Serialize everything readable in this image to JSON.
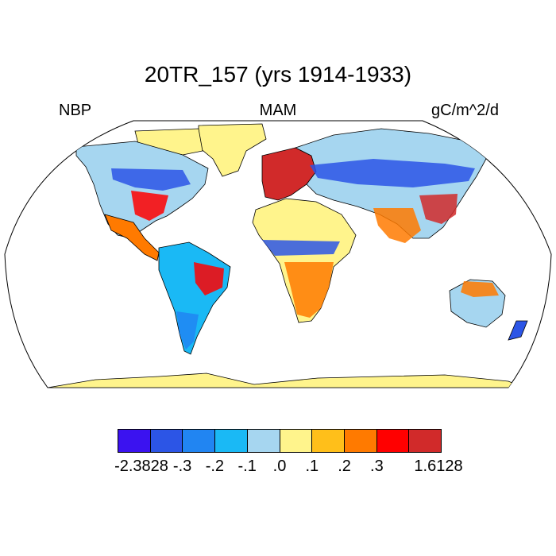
{
  "title": "20TR_157 (yrs 1914-1933)",
  "left_label": "NBP",
  "center_label": "MAM",
  "right_label": "gC/m^2/d",
  "colorbar": {
    "colors": [
      "#3b12f0",
      "#2c55e6",
      "#2185f2",
      "#1ab9f5",
      "#a6d6f0",
      "#fff48c",
      "#ffbf1a",
      "#ff7a00",
      "#ff0000",
      "#d12a2a"
    ],
    "labels": [
      "-2.3828",
      "-.3",
      "-.2",
      "-.1",
      ".0",
      ".1",
      ".2",
      ".3",
      "1.6128"
    ]
  },
  "map": {
    "projection": "Robinson",
    "land_default_color": "#fff48c",
    "ocean_color": "#ffffff",
    "region_colors": [
      {
        "region": "Arctic Canada & Greenland",
        "color": "#fff48c"
      },
      {
        "region": "Alaska & Western Canada",
        "color": "#a6d6f0"
      },
      {
        "region": "Central Canada band",
        "color": "#2c55e6"
      },
      {
        "region": "Eastern United States",
        "color": "#ff0000"
      },
      {
        "region": "Central America & Mexico",
        "color": "#ff7a00"
      },
      {
        "region": "Amazon basin",
        "color": "#1ab9f5"
      },
      {
        "region": "Eastern Brazil",
        "color": "#ff0000"
      },
      {
        "region": "Southern South America",
        "color": "#2185f2"
      },
      {
        "region": "Western Europe",
        "color": "#d12a2a"
      },
      {
        "region": "Siberia & boreal Eurasia",
        "color": "#a6d6f0"
      },
      {
        "region": "Central Asia band",
        "color": "#2c55e6"
      },
      {
        "region": "Sahara & Middle East",
        "color": "#fff48c"
      },
      {
        "region": "Sahel belt",
        "color": "#2c55e6"
      },
      {
        "region": "Southern Africa",
        "color": "#ff7a00"
      },
      {
        "region": "India & Southeast Asia",
        "color": "#ff7a00"
      },
      {
        "region": "Eastern China",
        "color": "#d12a2a"
      },
      {
        "region": "Australia interior",
        "color": "#a6d6f0"
      },
      {
        "region": "Northern Australia",
        "color": "#ff7a00"
      },
      {
        "region": "Antarctica",
        "color": "#fff48c"
      }
    ]
  }
}
